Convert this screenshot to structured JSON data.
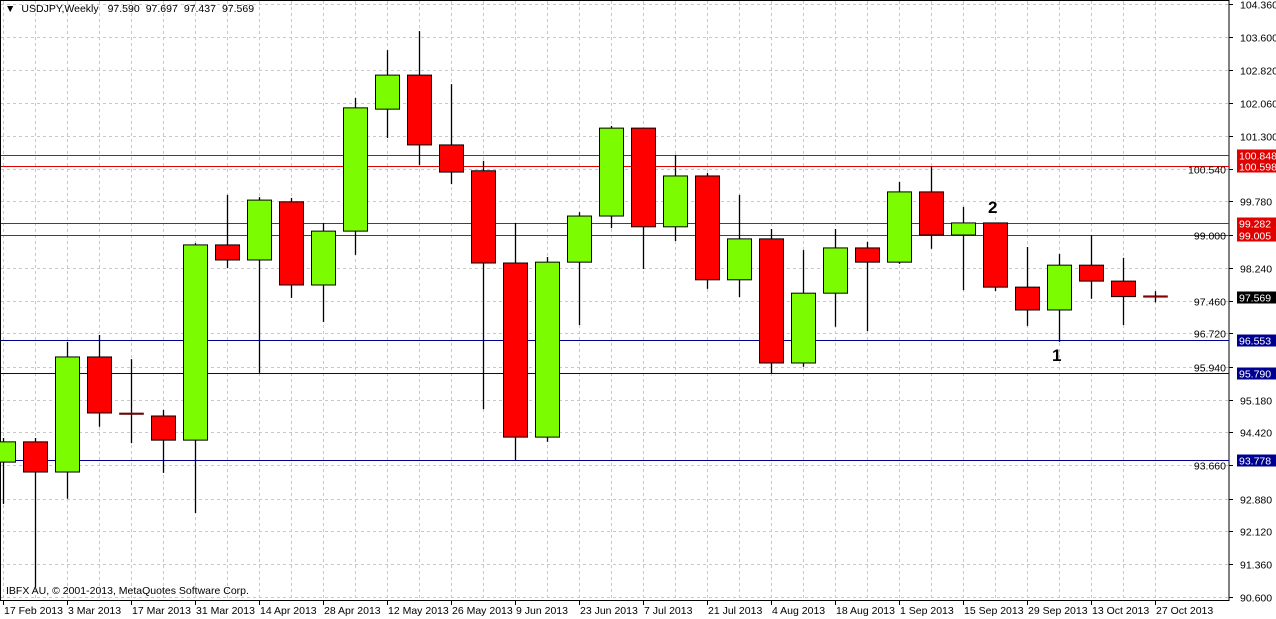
{
  "header": {
    "symbol_timeframe": "USDJPY,Weekly",
    "open": "97.590",
    "high": "97.697",
    "low": "97.437",
    "close": "97.569"
  },
  "copyright": "IBFX AU, © 2001-2013, MetaQuotes Software Corp.",
  "annotations": [
    {
      "text": "2",
      "candle_date": "15 Sep 2013"
    },
    {
      "text": "1",
      "candle_date": "29 Sep 2013"
    }
  ],
  "colors": {
    "bull": "#7CFC00",
    "bear": "#FF0000",
    "resistance_line": "#E00000",
    "support_line": "#000090",
    "current_price_bg": "#000000",
    "grid": "#C8C8C8"
  },
  "chart_data": {
    "type": "candlestick",
    "title": "USDJPY,Weekly",
    "ylim": [
      90.6,
      104.36
    ],
    "grid": true,
    "y_ticks": [
      "104.360",
      "103.600",
      "102.820",
      "102.060",
      "101.300",
      "100.540",
      "99.780",
      "99.000",
      "98.240",
      "97.460",
      "96.720",
      "95.940",
      "95.180",
      "94.420",
      "93.660",
      "92.880",
      "92.120",
      "91.360",
      "90.600"
    ],
    "x_tick_labels": [
      "17 Feb 2013",
      "3 Mar 2013",
      "17 Mar 2013",
      "31 Mar 2013",
      "14 Apr 2013",
      "28 Apr 2013",
      "12 May 2013",
      "26 May 2013",
      "9 Jun 2013",
      "23 Jun 2013",
      "7 Jul 2013",
      "21 Jul 2013",
      "4 Aug 2013",
      "18 Aug 2013",
      "1 Sep 2013",
      "15 Sep 2013",
      "29 Sep 2013",
      "13 Oct 2013",
      "27 Oct 2013"
    ],
    "dates": [
      "17 Feb 2013",
      "24 Feb 2013",
      "3 Mar 2013",
      "10 Mar 2013",
      "17 Mar 2013",
      "24 Mar 2013",
      "31 Mar 2013",
      "7 Apr 2013",
      "14 Apr 2013",
      "21 Apr 2013",
      "28 Apr 2013",
      "5 May 2013",
      "12 May 2013",
      "19 May 2013",
      "26 May 2013",
      "2 Jun 2013",
      "9 Jun 2013",
      "16 Jun 2013",
      "23 Jun 2013",
      "30 Jun 2013",
      "7 Jul 2013",
      "14 Jul 2013",
      "21 Jul 2013",
      "28 Jul 2013",
      "4 Aug 2013",
      "11 Aug 2013",
      "18 Aug 2013",
      "25 Aug 2013",
      "1 Sep 2013",
      "8 Sep 2013",
      "15 Sep 2013",
      "22 Sep 2013",
      "29 Sep 2013",
      "6 Oct 2013",
      "13 Oct 2013",
      "20 Oct 2013",
      "27 Oct 2013"
    ],
    "ohlc": [
      [
        93.73,
        94.29,
        92.76,
        94.2
      ],
      [
        94.2,
        94.29,
        90.83,
        93.5
      ],
      [
        93.5,
        96.52,
        92.88,
        96.17
      ],
      [
        96.17,
        96.68,
        94.55,
        94.87
      ],
      [
        94.87,
        96.12,
        94.17,
        94.85
      ],
      [
        94.8,
        94.94,
        93.48,
        94.24
      ],
      [
        94.24,
        98.81,
        92.55,
        98.77
      ],
      [
        98.77,
        99.93,
        98.23,
        98.42
      ],
      [
        98.42,
        99.88,
        95.8,
        99.81
      ],
      [
        99.77,
        99.86,
        97.54,
        97.84
      ],
      [
        97.84,
        99.28,
        96.98,
        99.09
      ],
      [
        99.09,
        102.18,
        98.54,
        101.95
      ],
      [
        101.92,
        103.29,
        101.25,
        102.71
      ],
      [
        102.71,
        103.73,
        100.62,
        101.09
      ],
      [
        101.09,
        102.5,
        100.18,
        100.46
      ],
      [
        100.49,
        100.72,
        94.96,
        98.35
      ],
      [
        98.35,
        99.28,
        93.76,
        94.31
      ],
      [
        94.31,
        98.49,
        94.2,
        98.37
      ],
      [
        98.37,
        99.53,
        96.91,
        99.44
      ],
      [
        99.44,
        101.53,
        99.16,
        101.48
      ],
      [
        101.48,
        101.48,
        98.21,
        99.19
      ],
      [
        99.19,
        100.86,
        98.86,
        100.37
      ],
      [
        100.37,
        100.44,
        97.75,
        97.96
      ],
      [
        97.96,
        99.93,
        97.56,
        98.91
      ],
      [
        98.91,
        99.14,
        95.78,
        96.03
      ],
      [
        96.03,
        98.65,
        95.94,
        97.65
      ],
      [
        97.65,
        99.14,
        96.87,
        98.7
      ],
      [
        98.7,
        98.84,
        96.77,
        98.37
      ],
      [
        98.37,
        100.23,
        98.33,
        100.0
      ],
      [
        100.0,
        100.6,
        98.68,
        99.0
      ],
      [
        99.0,
        99.65,
        97.72,
        99.28
      ],
      [
        99.28,
        99.28,
        97.7,
        97.79
      ],
      [
        97.79,
        98.72,
        96.89,
        97.26
      ],
      [
        97.26,
        98.56,
        96.52,
        98.3
      ],
      [
        98.3,
        99.0,
        97.52,
        97.93
      ],
      [
        97.93,
        98.47,
        96.91,
        97.57
      ],
      [
        97.59,
        97.697,
        97.437,
        97.569
      ]
    ],
    "horizontal_lines": [
      {
        "price": "100.848",
        "kind": "resistance"
      },
      {
        "price": "100.598",
        "kind": "resistance"
      },
      {
        "price": "99.282",
        "kind": "resistance"
      },
      {
        "price": "99.005",
        "kind": "resistance"
      },
      {
        "price": "96.553",
        "kind": "support"
      },
      {
        "price": "95.790",
        "kind": "support"
      },
      {
        "price": "93.778",
        "kind": "support"
      }
    ],
    "current_price": "97.569"
  }
}
